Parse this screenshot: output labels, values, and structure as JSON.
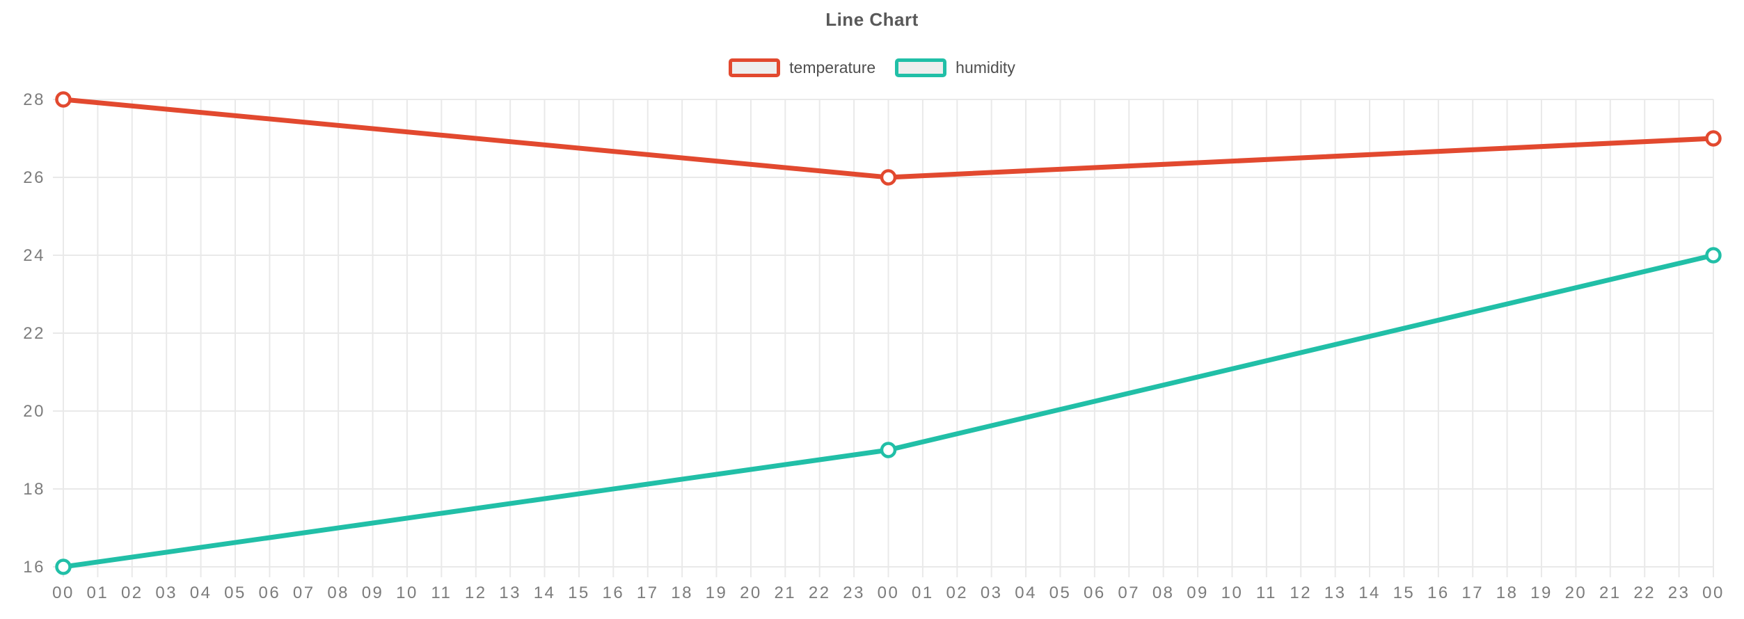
{
  "chart": {
    "title": "Line Chart"
  },
  "chart_data": {
    "type": "line",
    "title": "Line Chart",
    "categories": [
      "00",
      "01",
      "02",
      "03",
      "04",
      "05",
      "06",
      "07",
      "08",
      "09",
      "10",
      "11",
      "12",
      "13",
      "14",
      "15",
      "16",
      "17",
      "18",
      "19",
      "20",
      "21",
      "22",
      "23",
      "00",
      "01",
      "02",
      "03",
      "04",
      "05",
      "06",
      "07",
      "08",
      "09",
      "10",
      "11",
      "12",
      "13",
      "14",
      "15",
      "16",
      "17",
      "18",
      "19",
      "20",
      "21",
      "22",
      "23",
      "00"
    ],
    "series": [
      {
        "name": "temperature",
        "color": "#e2492f",
        "points": [
          {
            "i": 0,
            "y": 28
          },
          {
            "i": 24,
            "y": 26
          },
          {
            "i": 48,
            "y": 27
          }
        ]
      },
      {
        "name": "humidity",
        "color": "#21bfa7",
        "points": [
          {
            "i": 0,
            "y": 16
          },
          {
            "i": 24,
            "y": 19
          },
          {
            "i": 48,
            "y": 24
          }
        ]
      }
    ],
    "xlabel": "",
    "ylabel": "",
    "ylim": [
      16,
      28
    ],
    "ytick_step": 2,
    "yticks": [
      16,
      18,
      20,
      22,
      24,
      26,
      28
    ],
    "grid": true,
    "legend_position": "top",
    "colors": {
      "grid": "#e9e9e9",
      "tick_text": "#7c7c7c",
      "point_fill": "#ffffff",
      "legend_marker_fill": "#eeeeee"
    }
  }
}
